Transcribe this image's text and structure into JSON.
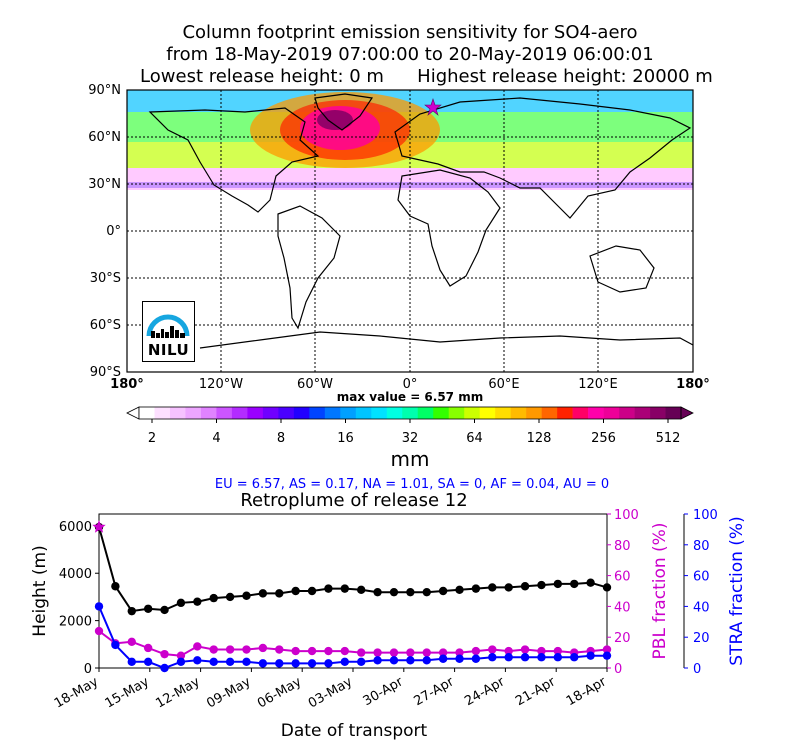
{
  "title": {
    "line1": "Column footprint emission sensitivity for SO4-aero",
    "line2": "from 18-May-2019 07:00:00 to 20-May-2019 06:00:01",
    "line3a": "Lowest release height: 0 m",
    "line3b": "Highest release height: 20000 m"
  },
  "map": {
    "lat_labels": [
      "90°N",
      "60°N",
      "30°N",
      "0°",
      "30°S",
      "60°S",
      "90°S"
    ],
    "lon_labels": [
      "180°",
      "120°W",
      "60°W",
      "0°",
      "60°E",
      "120°E",
      "180°"
    ],
    "max_value_label": "max value = 6.57 mm",
    "logo_text": "NILU",
    "colors": {
      "land_outline": "#000000",
      "grid": "#000000"
    }
  },
  "colorbar": {
    "tick_labels": [
      "2",
      "4",
      "8",
      "16",
      "32",
      "64",
      "128",
      "256",
      "512"
    ],
    "unit": "mm",
    "colors": [
      "#ffffff",
      "#fde0ff",
      "#f6c2ff",
      "#eda6ff",
      "#e083ff",
      "#cc55ff",
      "#b32cff",
      "#9a00ff",
      "#7000ff",
      "#4a00ff",
      "#2200ff",
      "#0044ff",
      "#0077ff",
      "#00a0ff",
      "#00c4ff",
      "#00e2ff",
      "#00ffe2",
      "#00ffae",
      "#00ff66",
      "#33ff00",
      "#88ff00",
      "#ccff00",
      "#ffff00",
      "#ffdd00",
      "#ffbb00",
      "#ff9900",
      "#ff6600",
      "#ff2200",
      "#ff0066",
      "#ff00aa",
      "#ee0099",
      "#cc0088",
      "#aa0077",
      "#880066",
      "#660055"
    ]
  },
  "region_fractions": "EU = 6.57,  AS = 0.17,  NA = 1.01,  SA = 0,  AF = 0.04,  AU = 0",
  "chart_data": {
    "type": "line",
    "title": "Retroplume of release 12",
    "xlabel": "Date of transport",
    "ylabel": "Height (m)",
    "y2label": "PBL fraction (%)",
    "y3label": "STRA fraction (%)",
    "ylim": [
      0,
      6500
    ],
    "y2lim": [
      0,
      100
    ],
    "y3lim": [
      0,
      100
    ],
    "height_ticks": [
      0,
      2000,
      4000,
      6000
    ],
    "fraction_ticks": [
      0,
      20,
      40,
      60,
      80,
      100
    ],
    "x_tick_labels": [
      "18-May",
      "15-May",
      "12-May",
      "09-May",
      "06-May",
      "03-May",
      "30-Apr",
      "27-Apr",
      "24-Apr",
      "21-Apr",
      "18-Apr"
    ],
    "x_days_back": [
      0,
      1,
      2,
      3,
      4,
      5,
      6,
      7,
      8,
      9,
      10,
      11,
      12,
      13,
      14,
      15,
      16,
      17,
      18,
      19,
      20,
      21,
      22,
      23,
      24,
      25,
      26,
      27,
      28,
      29,
      30,
      31
    ],
    "series": [
      {
        "name": "Height",
        "axis": "height",
        "color": "#000000",
        "values": [
          5950,
          3450,
          2400,
          2500,
          2450,
          2750,
          2800,
          2950,
          3000,
          3050,
          3150,
          3150,
          3250,
          3250,
          3350,
          3350,
          3300,
          3200,
          3200,
          3200,
          3200,
          3250,
          3300,
          3350,
          3400,
          3400,
          3450,
          3500,
          3550,
          3550,
          3600,
          3400
        ]
      },
      {
        "name": "PBL fraction",
        "axis": "pbl",
        "color": "#cc00cc",
        "values": [
          24,
          16,
          17,
          13,
          9,
          8,
          14,
          12,
          12,
          12,
          13,
          12,
          11,
          11,
          11,
          11,
          10,
          10,
          10,
          10,
          10,
          10,
          10,
          11,
          12,
          11,
          12,
          11,
          11,
          10,
          11,
          12
        ]
      },
      {
        "name": "STRA fraction",
        "axis": "stra",
        "color": "#0000ff",
        "values": [
          40,
          15,
          4,
          4,
          0,
          4,
          5,
          4,
          4,
          4,
          3,
          3,
          3,
          3,
          3,
          4,
          4,
          5,
          5,
          5,
          5,
          6,
          6,
          6,
          7,
          7,
          7,
          7,
          7,
          7,
          8,
          8
        ]
      }
    ],
    "markers": {
      "start_star_color": "#cc00cc"
    }
  }
}
